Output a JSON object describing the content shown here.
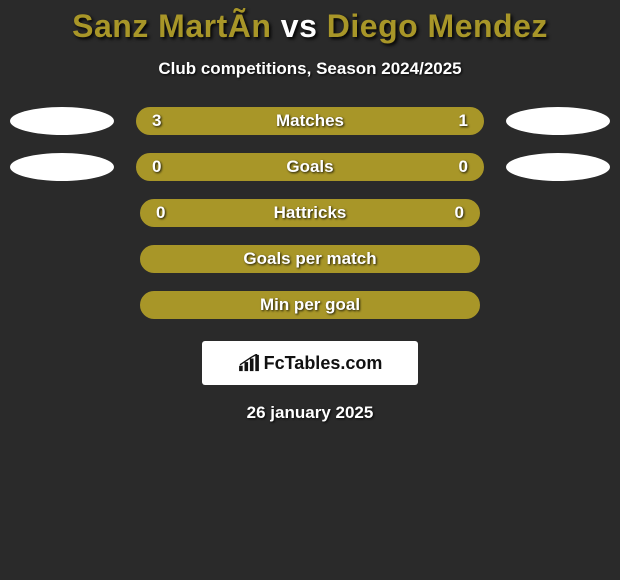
{
  "title": {
    "player1": "Sanz MartÃ­n",
    "vs": "vs",
    "player2": "Diego Mendez",
    "player1_color": "#a89628",
    "vs_color": "#ffffff",
    "player2_color": "#a89628"
  },
  "subtitle": "Club competitions, Season 2024/2025",
  "colors": {
    "background": "#2a2a2a",
    "bar_bg": "#a89628",
    "bar_border": "#a89628",
    "fill_left": "#a89628",
    "fill_right": "#a89628",
    "ellipse": "#ffffff",
    "text": "#ffffff"
  },
  "bar_width_with_ellipse": 348,
  "bar_width_no_ellipse": 340,
  "rows": [
    {
      "label": "Matches",
      "left_value": "3",
      "right_value": "1",
      "left_pct": 72,
      "right_pct": 26,
      "show_ellipses": true
    },
    {
      "label": "Goals",
      "left_value": "0",
      "right_value": "0",
      "left_pct": 100,
      "right_pct": 0,
      "show_ellipses": true
    },
    {
      "label": "Hattricks",
      "left_value": "0",
      "right_value": "0",
      "left_pct": 100,
      "right_pct": 0,
      "show_ellipses": false
    },
    {
      "label": "Goals per match",
      "left_value": "",
      "right_value": "",
      "left_pct": 100,
      "right_pct": 0,
      "show_ellipses": false
    },
    {
      "label": "Min per goal",
      "left_value": "",
      "right_value": "",
      "left_pct": 100,
      "right_pct": 0,
      "show_ellipses": false
    }
  ],
  "brand": "FcTables.com",
  "date": "26 january 2025"
}
